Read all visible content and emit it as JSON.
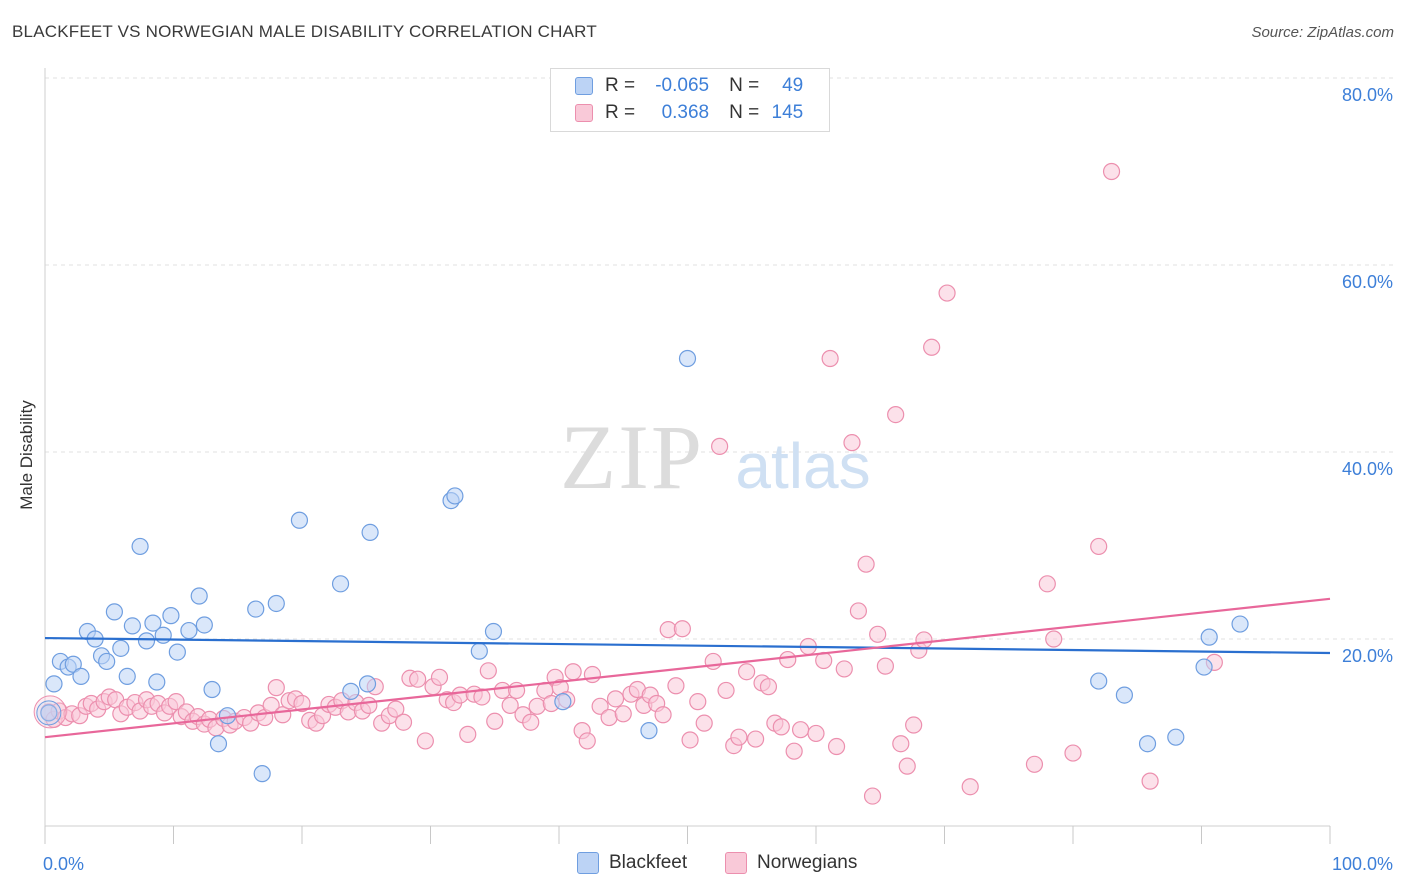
{
  "header": {
    "title": "BLACKFEET VS NORWEGIAN MALE DISABILITY CORRELATION CHART",
    "source": "Source: ZipAtlas.com"
  },
  "legend_top": {
    "rows": [
      {
        "r_label": "R =",
        "r_value": "-0.065",
        "n_label": "N =",
        "n_value": "49",
        "series": "Blackfeet"
      },
      {
        "r_label": "R =",
        "r_value": "0.368",
        "n_label": "N =",
        "n_value": "145",
        "series": "Norwegians"
      }
    ]
  },
  "legend_bottom": {
    "items": [
      {
        "label": "Blackfeet"
      },
      {
        "label": "Norwegians"
      }
    ]
  },
  "colors": {
    "blackfeet_fill": "#bcd3f5",
    "blackfeet_stroke": "#6f9ee0",
    "blackfeet_line": "#2a6fcf",
    "norwegians_fill": "#f9c9d8",
    "norwegians_stroke": "#ec8fae",
    "norwegians_line": "#e8679a",
    "axis_text": "#3d7fd8",
    "grid": "#e2e2e2"
  },
  "watermark": {
    "zip": "ZIP",
    "atlas": "atlas"
  },
  "chart_data": {
    "type": "scatter",
    "title": "BLACKFEET VS NORWEGIAN MALE DISABILITY CORRELATION CHART",
    "xlabel": "",
    "ylabel": "Male Disability",
    "xlim": [
      0,
      100
    ],
    "ylim": [
      0,
      80
    ],
    "x_tick_labels": [
      "0.0%",
      "100.0%"
    ],
    "y_tick_labels": [
      "20.0%",
      "40.0%",
      "60.0%",
      "80.0%"
    ],
    "y_ticks": [
      20,
      40,
      60,
      80
    ],
    "grid": true,
    "series": [
      {
        "name": "Blackfeet",
        "trend": {
          "x": [
            0,
            100
          ],
          "y": [
            20.1,
            18.5
          ]
        },
        "points": [
          [
            0.3,
            12.1
          ],
          [
            0.7,
            15.2
          ],
          [
            1.2,
            17.6
          ],
          [
            1.8,
            17.0
          ],
          [
            2.2,
            17.3
          ],
          [
            2.8,
            16.0
          ],
          [
            3.3,
            20.8
          ],
          [
            3.9,
            20.0
          ],
          [
            4.4,
            18.2
          ],
          [
            4.8,
            17.6
          ],
          [
            5.4,
            22.9
          ],
          [
            5.9,
            19.0
          ],
          [
            6.4,
            16.0
          ],
          [
            6.8,
            21.4
          ],
          [
            7.4,
            29.9
          ],
          [
            7.9,
            19.8
          ],
          [
            8.4,
            21.7
          ],
          [
            8.7,
            15.4
          ],
          [
            9.2,
            20.4
          ],
          [
            9.8,
            22.5
          ],
          [
            10.3,
            18.6
          ],
          [
            11.2,
            20.9
          ],
          [
            12.0,
            24.6
          ],
          [
            12.4,
            21.5
          ],
          [
            13.0,
            14.6
          ],
          [
            13.5,
            8.8
          ],
          [
            14.2,
            11.8
          ],
          [
            16.4,
            23.2
          ],
          [
            16.9,
            5.6
          ],
          [
            18.0,
            23.8
          ],
          [
            19.8,
            32.7
          ],
          [
            23.0,
            25.9
          ],
          [
            23.8,
            14.4
          ],
          [
            25.3,
            31.4
          ],
          [
            25.1,
            15.2
          ],
          [
            31.6,
            34.8
          ],
          [
            31.9,
            35.3
          ],
          [
            33.8,
            18.7
          ],
          [
            34.9,
            20.8
          ],
          [
            40.3,
            13.3
          ],
          [
            47.0,
            10.2
          ],
          [
            50.0,
            50.0
          ],
          [
            82.0,
            15.5
          ],
          [
            84.0,
            14.0
          ],
          [
            85.8,
            8.8
          ],
          [
            88.0,
            9.5
          ],
          [
            90.2,
            17.0
          ],
          [
            90.6,
            20.2
          ],
          [
            93.0,
            21.6
          ]
        ]
      },
      {
        "name": "Norwegians",
        "trend": {
          "x": [
            0,
            100
          ],
          "y": [
            9.5,
            24.3
          ]
        },
        "points": [
          [
            0.3,
            12.2
          ],
          [
            0.7,
            11.4
          ],
          [
            1.1,
            12.3
          ],
          [
            1.6,
            11.6
          ],
          [
            2.1,
            12.0
          ],
          [
            2.7,
            11.8
          ],
          [
            3.2,
            12.8
          ],
          [
            3.6,
            13.1
          ],
          [
            4.1,
            12.5
          ],
          [
            4.6,
            13.3
          ],
          [
            5.0,
            13.8
          ],
          [
            5.5,
            13.5
          ],
          [
            5.9,
            12.0
          ],
          [
            6.4,
            12.7
          ],
          [
            7.0,
            13.2
          ],
          [
            7.4,
            12.3
          ],
          [
            7.9,
            13.5
          ],
          [
            8.3,
            12.8
          ],
          [
            8.8,
            13.1
          ],
          [
            9.3,
            12.1
          ],
          [
            9.7,
            12.8
          ],
          [
            10.2,
            13.3
          ],
          [
            10.6,
            11.7
          ],
          [
            11.0,
            12.2
          ],
          [
            11.5,
            11.2
          ],
          [
            11.9,
            11.7
          ],
          [
            12.4,
            10.9
          ],
          [
            12.8,
            11.4
          ],
          [
            13.3,
            10.5
          ],
          [
            13.9,
            11.5
          ],
          [
            14.4,
            10.8
          ],
          [
            14.8,
            11.2
          ],
          [
            15.5,
            11.6
          ],
          [
            16.0,
            11.0
          ],
          [
            16.6,
            12.1
          ],
          [
            17.1,
            11.6
          ],
          [
            17.6,
            12.9
          ],
          [
            18.0,
            14.8
          ],
          [
            18.5,
            11.9
          ],
          [
            19.0,
            13.4
          ],
          [
            19.5,
            13.6
          ],
          [
            20.0,
            13.1
          ],
          [
            20.6,
            11.3
          ],
          [
            21.1,
            11.0
          ],
          [
            21.6,
            11.8
          ],
          [
            22.1,
            13.0
          ],
          [
            22.6,
            12.7
          ],
          [
            23.1,
            13.4
          ],
          [
            23.6,
            12.2
          ],
          [
            24.2,
            13.2
          ],
          [
            24.7,
            12.3
          ],
          [
            25.2,
            12.9
          ],
          [
            25.7,
            14.9
          ],
          [
            26.2,
            11.0
          ],
          [
            26.8,
            11.8
          ],
          [
            27.3,
            12.5
          ],
          [
            27.9,
            11.1
          ],
          [
            28.4,
            15.8
          ],
          [
            29.0,
            15.7
          ],
          [
            29.6,
            9.1
          ],
          [
            30.2,
            14.9
          ],
          [
            30.7,
            15.9
          ],
          [
            31.3,
            13.5
          ],
          [
            31.8,
            13.2
          ],
          [
            32.3,
            14.0
          ],
          [
            32.9,
            9.8
          ],
          [
            33.4,
            14.1
          ],
          [
            34.0,
            13.8
          ],
          [
            34.5,
            16.6
          ],
          [
            35.0,
            11.2
          ],
          [
            35.6,
            14.5
          ],
          [
            36.2,
            12.9
          ],
          [
            36.7,
            14.5
          ],
          [
            37.2,
            11.9
          ],
          [
            37.8,
            11.1
          ],
          [
            38.3,
            12.8
          ],
          [
            38.9,
            14.5
          ],
          [
            39.4,
            13.1
          ],
          [
            39.7,
            15.9
          ],
          [
            40.1,
            14.8
          ],
          [
            40.6,
            13.5
          ],
          [
            41.1,
            16.5
          ],
          [
            41.8,
            10.2
          ],
          [
            42.2,
            9.1
          ],
          [
            42.6,
            16.2
          ],
          [
            43.2,
            12.8
          ],
          [
            43.9,
            11.6
          ],
          [
            44.4,
            13.6
          ],
          [
            45.0,
            12.0
          ],
          [
            45.6,
            14.1
          ],
          [
            46.1,
            14.6
          ],
          [
            46.6,
            12.9
          ],
          [
            47.1,
            14.0
          ],
          [
            47.6,
            13.1
          ],
          [
            48.1,
            11.9
          ],
          [
            48.5,
            21.0
          ],
          [
            49.1,
            15.0
          ],
          [
            49.6,
            21.1
          ],
          [
            50.2,
            9.2
          ],
          [
            50.8,
            13.3
          ],
          [
            51.3,
            11.0
          ],
          [
            52.0,
            17.6
          ],
          [
            52.5,
            40.6
          ],
          [
            53.0,
            14.5
          ],
          [
            53.6,
            8.6
          ],
          [
            54.0,
            9.5
          ],
          [
            54.6,
            16.5
          ],
          [
            55.3,
            9.3
          ],
          [
            55.8,
            15.3
          ],
          [
            56.3,
            14.9
          ],
          [
            56.8,
            11.0
          ],
          [
            57.3,
            10.6
          ],
          [
            57.8,
            17.8
          ],
          [
            58.3,
            8.0
          ],
          [
            58.8,
            10.3
          ],
          [
            59.4,
            19.2
          ],
          [
            60.0,
            9.9
          ],
          [
            60.6,
            17.7
          ],
          [
            61.1,
            50.0
          ],
          [
            61.6,
            8.5
          ],
          [
            62.2,
            16.8
          ],
          [
            62.8,
            41.0
          ],
          [
            63.3,
            23.0
          ],
          [
            63.9,
            28.0
          ],
          [
            64.4,
            3.2
          ],
          [
            64.8,
            20.5
          ],
          [
            65.4,
            17.1
          ],
          [
            66.2,
            44.0
          ],
          [
            66.6,
            8.8
          ],
          [
            67.1,
            6.4
          ],
          [
            67.6,
            10.8
          ],
          [
            68.0,
            18.8
          ],
          [
            68.4,
            19.9
          ],
          [
            69.0,
            51.2
          ],
          [
            70.2,
            57.0
          ],
          [
            72.0,
            4.2
          ],
          [
            77.0,
            6.6
          ],
          [
            78.0,
            25.9
          ],
          [
            78.5,
            20.0
          ],
          [
            80.0,
            7.8
          ],
          [
            82.0,
            29.9
          ],
          [
            83.0,
            70.0
          ],
          [
            86.0,
            4.8
          ],
          [
            91.0,
            17.5
          ]
        ]
      }
    ]
  }
}
